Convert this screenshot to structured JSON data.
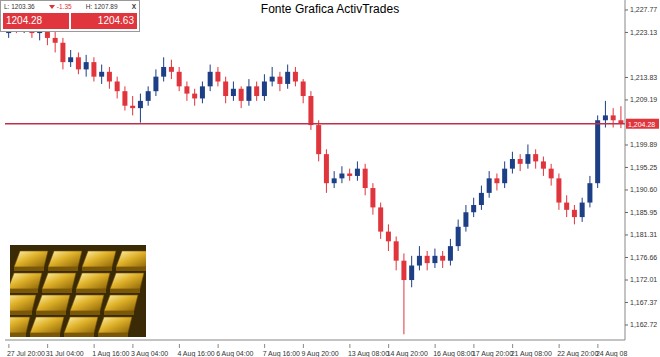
{
  "chart_data": {
    "type": "candlestick",
    "title": "Fonte Grafica ActivTrades",
    "x": [
      "27 Jul 20:00",
      null,
      null,
      null,
      null,
      "31 Jul 04:00",
      null,
      null,
      null,
      null,
      null,
      "1 Aug 16:00",
      null,
      null,
      null,
      null,
      "3 Aug 04:00",
      null,
      null,
      null,
      null,
      null,
      "4 Aug 16:00",
      null,
      null,
      null,
      null,
      "6 Aug 04:00",
      null,
      null,
      null,
      null,
      null,
      "7 Aug 16:00",
      null,
      null,
      null,
      null,
      "9 Aug 20:00",
      null,
      null,
      null,
      null,
      null,
      "13 Aug 08:00",
      null,
      null,
      null,
      null,
      "14 Aug 20:00",
      null,
      null,
      null,
      null,
      null,
      "16 Aug 08:00",
      null,
      null,
      null,
      null,
      "17 Aug 20:00",
      null,
      null,
      null,
      null,
      "21 Aug 08:00",
      null,
      null,
      null,
      null,
      null,
      "22 Aug 20:00",
      null,
      null,
      null,
      null,
      "24 Aug 08",
      null,
      null,
      null
    ],
    "open": [
      1223,
      1225,
      1224,
      1226,
      1223,
      1224.5,
      1222,
      1221,
      1217,
      1218,
      1215.5,
      1217,
      1214,
      1215,
      1213,
      1211,
      1208,
      1207.5,
      1209,
      1211,
      1214,
      1216,
      1215,
      1212,
      1210.5,
      1209.5,
      1212,
      1215,
      1213,
      1210,
      1211.5,
      1209,
      1212,
      1210,
      1213,
      1214,
      1212.5,
      1215,
      1213,
      1210,
      1204,
      1198,
      1192,
      1193,
      1194,
      1193.5,
      1195,
      1191,
      1187,
      1182,
      1180,
      1176,
      1172,
      1175,
      1177,
      1175.5,
      1177,
      1176,
      1179,
      1183,
      1186,
      1187.5,
      1190,
      1193,
      1192,
      1195,
      1197,
      1196,
      1198,
      1196.5,
      1195,
      1193,
      1188,
      1186.5,
      1185,
      1188,
      1192,
      1205,
      1206,
      1205
    ],
    "high": [
      1226.5,
      1227,
      1227.5,
      1226.8,
      1225.5,
      1225.5,
      1224,
      1222,
      1219.5,
      1219,
      1218.5,
      1218,
      1216.5,
      1216,
      1214,
      1212,
      1210,
      1210.5,
      1212,
      1215.5,
      1218,
      1217.5,
      1216,
      1213,
      1211.5,
      1213,
      1216.5,
      1216,
      1214,
      1213,
      1212,
      1213.5,
      1213,
      1214.5,
      1216,
      1215,
      1216.5,
      1216,
      1213.5,
      1211,
      1205,
      1199,
      1194.5,
      1195.5,
      1195,
      1196.5,
      1196,
      1192,
      1188,
      1183.5,
      1181,
      1177.5,
      1177,
      1179,
      1178,
      1178.5,
      1178,
      1180.5,
      1184.5,
      1187.5,
      1189,
      1191.5,
      1194.5,
      1194,
      1196.5,
      1198.5,
      1198,
      1200,
      1199,
      1197.5,
      1196,
      1194,
      1189.5,
      1187.5,
      1189,
      1193.5,
      1206,
      1209,
      1207.5,
      1207.89
    ],
    "low": [
      1222,
      1223,
      1223,
      1222,
      1221.5,
      1220.5,
      1219,
      1215.5,
      1216,
      1214.5,
      1214,
      1213,
      1212.5,
      1211.5,
      1209.5,
      1207,
      1206,
      1204.5,
      1208,
      1210,
      1213,
      1213.5,
      1211,
      1209,
      1208,
      1208.5,
      1211,
      1212,
      1208.5,
      1209,
      1207.5,
      1208,
      1209,
      1209,
      1212,
      1211,
      1211.5,
      1212,
      1208.5,
      1203,
      1196.5,
      1190,
      1191,
      1192,
      1192.5,
      1192.5,
      1189.5,
      1185.5,
      1180.5,
      1178,
      1174,
      1160.8,
      1170.5,
      1174,
      1174,
      1174.5,
      1174.5,
      1175,
      1178,
      1182,
      1185,
      1186.5,
      1189,
      1190.5,
      1191,
      1194,
      1194.5,
      1195,
      1195,
      1193.5,
      1191.5,
      1186.5,
      1185,
      1183.5,
      1184,
      1187,
      1191,
      1203.5,
      1203.5,
      1203.36
    ],
    "close": [
      1225,
      1224,
      1226,
      1223,
      1224.5,
      1222,
      1221,
      1217,
      1218,
      1215.5,
      1217,
      1214,
      1215,
      1213,
      1211,
      1208,
      1207.5,
      1209,
      1211,
      1214,
      1216,
      1215,
      1212,
      1210.5,
      1209.5,
      1212,
      1215,
      1213,
      1210,
      1211.5,
      1209,
      1212,
      1210,
      1213,
      1214,
      1212.5,
      1215,
      1213,
      1210,
      1204,
      1198,
      1192,
      1193,
      1194,
      1193.5,
      1195,
      1191,
      1187,
      1182,
      1180,
      1176,
      1172,
      1175,
      1177,
      1175.5,
      1177,
      1176,
      1179,
      1183,
      1186,
      1187.5,
      1190,
      1193,
      1192,
      1195,
      1197,
      1196,
      1198,
      1196.5,
      1195,
      1193,
      1188,
      1186.5,
      1185,
      1188,
      1192,
      1205,
      1206,
      1205,
      1204.28
    ],
    "color": {
      "up": "#1d3f86",
      "down": "#e0353c"
    },
    "ylim": [
      1159.62,
      1229.83
    ],
    "yticks": [
      {
        "value": 1162.72,
        "label": "1,162.72"
      },
      {
        "value": 1167.37,
        "label": "1,167.37"
      },
      {
        "value": 1172.01,
        "label": "1,172.01"
      },
      {
        "value": 1176.66,
        "label": "1,176.66"
      },
      {
        "value": 1181.31,
        "label": "1,181.31"
      },
      {
        "value": 1185.95,
        "label": "1,185.95"
      },
      {
        "value": 1190.6,
        "label": "1,190.60"
      },
      {
        "value": 1195.25,
        "label": "1,195.25"
      },
      {
        "value": 1199.89,
        "label": "1,199.89"
      },
      {
        "value": 1209.19,
        "label": "1,209.19"
      },
      {
        "value": 1213.83,
        "label": "1,213.83"
      },
      {
        "value": 1223.13,
        "label": "1,223.13"
      },
      {
        "value": 1227.77,
        "label": "1,227.77"
      }
    ],
    "price_line": {
      "value": 1204.28,
      "label": "1,204.28"
    },
    "quote_panel": {
      "low": "L: 1203.36",
      "change": "-1.35",
      "high": "H: 1207.89",
      "close": "X",
      "bid": "1204.28",
      "ask": "1204.63"
    },
    "grid": false
  }
}
